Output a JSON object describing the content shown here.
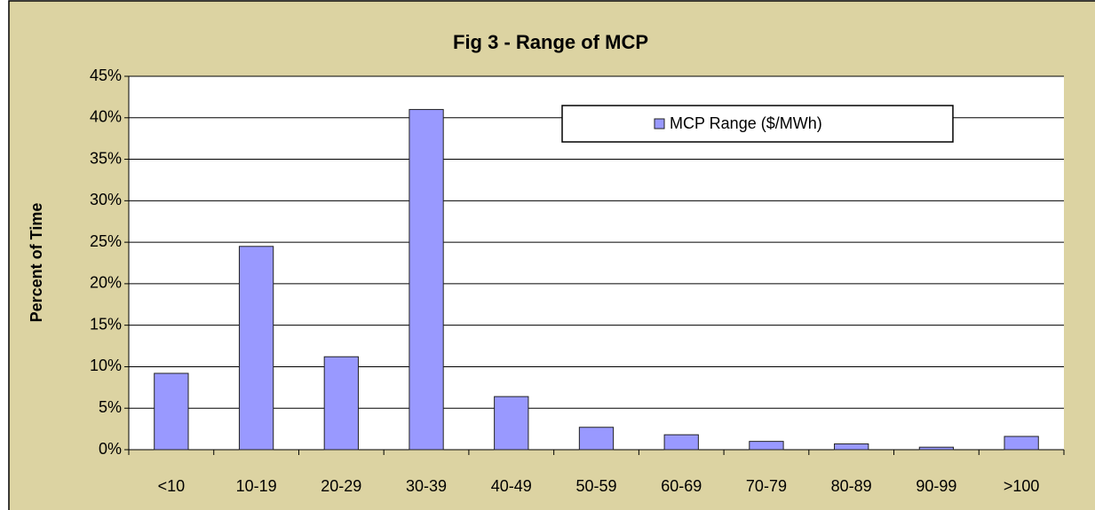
{
  "chart_data": {
    "type": "bar",
    "title": "Fig 3 - Range of MCP",
    "y_label": "Percent of Time",
    "categories": [
      "<10",
      "10-19",
      "20-29",
      "30-39",
      "40-49",
      "50-59",
      "60-69",
      "70-79",
      "80-89",
      "90-99",
      ">100"
    ],
    "series": [
      {
        "name": "MCP Range ($/MWh)",
        "color": "#9999ff",
        "values": [
          9.2,
          24.5,
          11.2,
          41.0,
          6.4,
          2.7,
          1.8,
          1.0,
          0.7,
          0.3,
          1.6
        ]
      }
    ],
    "ylim": [
      0,
      45
    ],
    "yticks": [
      {
        "value": 0,
        "label": "0%"
      },
      {
        "value": 5,
        "label": "5%"
      },
      {
        "value": 10,
        "label": "10%"
      },
      {
        "value": 15,
        "label": "15%"
      },
      {
        "value": 20,
        "label": "20%"
      },
      {
        "value": 25,
        "label": "25%"
      },
      {
        "value": 30,
        "label": "30%"
      },
      {
        "value": 35,
        "label": "35%"
      },
      {
        "value": 40,
        "label": "40%"
      },
      {
        "value": 45,
        "label": "45%"
      }
    ],
    "grid": true,
    "legend": "top-right"
  }
}
